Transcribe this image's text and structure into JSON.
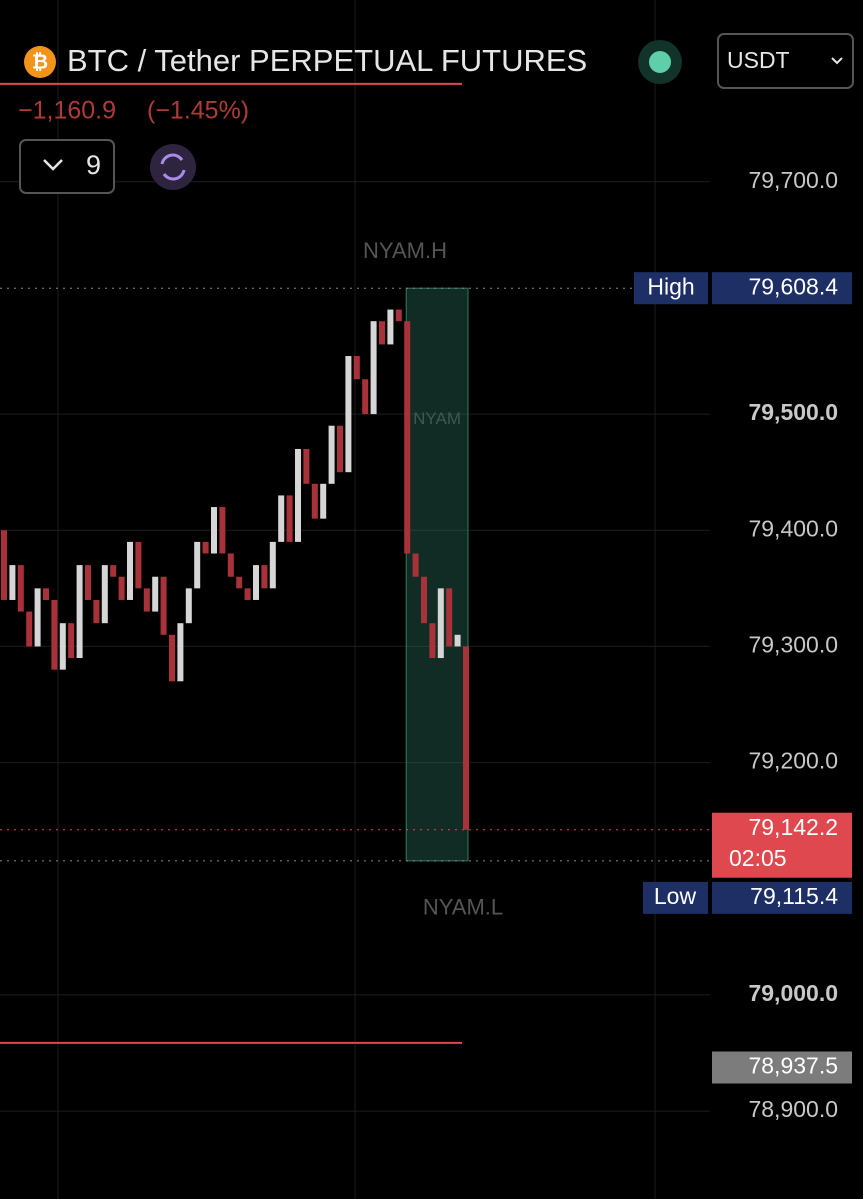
{
  "header": {
    "title": "BTC / Tether PERPETUAL FUTURES",
    "change_label": "−1,160.9",
    "change_percent_label": "(−1.45%)",
    "indicator_count": "9",
    "currency": "USDT"
  },
  "chart_data": {
    "type": "candlestick",
    "categories": [
      null,
      null,
      null,
      null,
      null,
      null,
      null,
      null,
      null,
      null,
      null,
      null,
      null,
      null,
      null,
      null,
      null,
      null,
      null,
      null,
      null,
      null,
      null,
      null,
      null,
      null,
      null,
      null,
      null,
      null,
      null,
      null,
      null,
      null,
      null,
      null,
      null,
      null,
      null,
      null,
      null,
      null,
      null,
      null,
      null,
      null,
      null,
      null,
      null,
      null,
      null,
      null,
      null,
      null,
      null,
      null
    ],
    "open": [
      79400,
      79340,
      79370,
      79330,
      79300,
      79350,
      79340,
      79280,
      79320,
      79290,
      79370,
      79340,
      79320,
      79370,
      79360,
      79340,
      79390,
      79350,
      79330,
      79360,
      79310,
      79270,
      79320,
      79350,
      79390,
      79380,
      79420,
      79380,
      79360,
      79350,
      79340,
      79370,
      79350,
      79390,
      79430,
      79390,
      79470,
      79440,
      79410,
      79440,
      79490,
      79450,
      79550,
      79530,
      79500,
      79580,
      79560,
      79590,
      79580,
      79380,
      79360,
      79320,
      79290,
      79350,
      79300,
      79300
    ],
    "high": {
      "name": "High",
      "value": 79608.4,
      "label": "79,608.4",
      "color": "#1e2f66"
    },
    "low": {
      "name": "Low",
      "value": 79115.4,
      "label": "79,115.4",
      "color": "#1e2f66"
    },
    "close": [
      79340,
      79370,
      79330,
      79300,
      79350,
      79340,
      79280,
      79320,
      79290,
      79370,
      79340,
      79320,
      79370,
      79360,
      79340,
      79390,
      79350,
      79330,
      79360,
      79310,
      79270,
      79320,
      79350,
      79390,
      79380,
      79420,
      79380,
      79360,
      79350,
      79340,
      79370,
      79350,
      79390,
      79430,
      79390,
      79470,
      79440,
      79410,
      79440,
      79490,
      79450,
      79550,
      79530,
      79500,
      79580,
      79560,
      79590,
      79580,
      79380,
      79360,
      79320,
      79290,
      79350,
      79300,
      79310,
      79142.2
    ],
    "up_color": "#d6d6d6",
    "down_color": "#a8323a",
    "ylim": [
      78824.3,
      79856.5
    ],
    "yticks": [
      {
        "value": 79700,
        "label": "79,700.0"
      },
      {
        "value": 79500,
        "label": "79,500.0",
        "bold": true
      },
      {
        "value": 79400,
        "label": "79,400.0"
      },
      {
        "value": 79300,
        "label": "79,300.0"
      },
      {
        "value": 79200,
        "label": "79,200.0"
      },
      {
        "value": 79000,
        "label": "79,000.0",
        "bold": true
      },
      {
        "value": 78900,
        "label": "78,900.0"
      }
    ],
    "grid": true,
    "session": {
      "label_high": "NYAM.H",
      "label_mid": "NYAM",
      "label_low": "NYAM.L",
      "color": "#2f7d66"
    },
    "last": {
      "value": 79142.2,
      "label": "79,142.2",
      "countdown": "02:05",
      "color": "#e0484f"
    },
    "marker": {
      "value": 78937.5,
      "label": "78,937.5",
      "color": "#7c7c7c"
    },
    "lines": [
      {
        "value": 79784.3,
        "color": "#e0484f"
      },
      {
        "value": 78958.7,
        "color": "#e0484f"
      }
    ]
  }
}
